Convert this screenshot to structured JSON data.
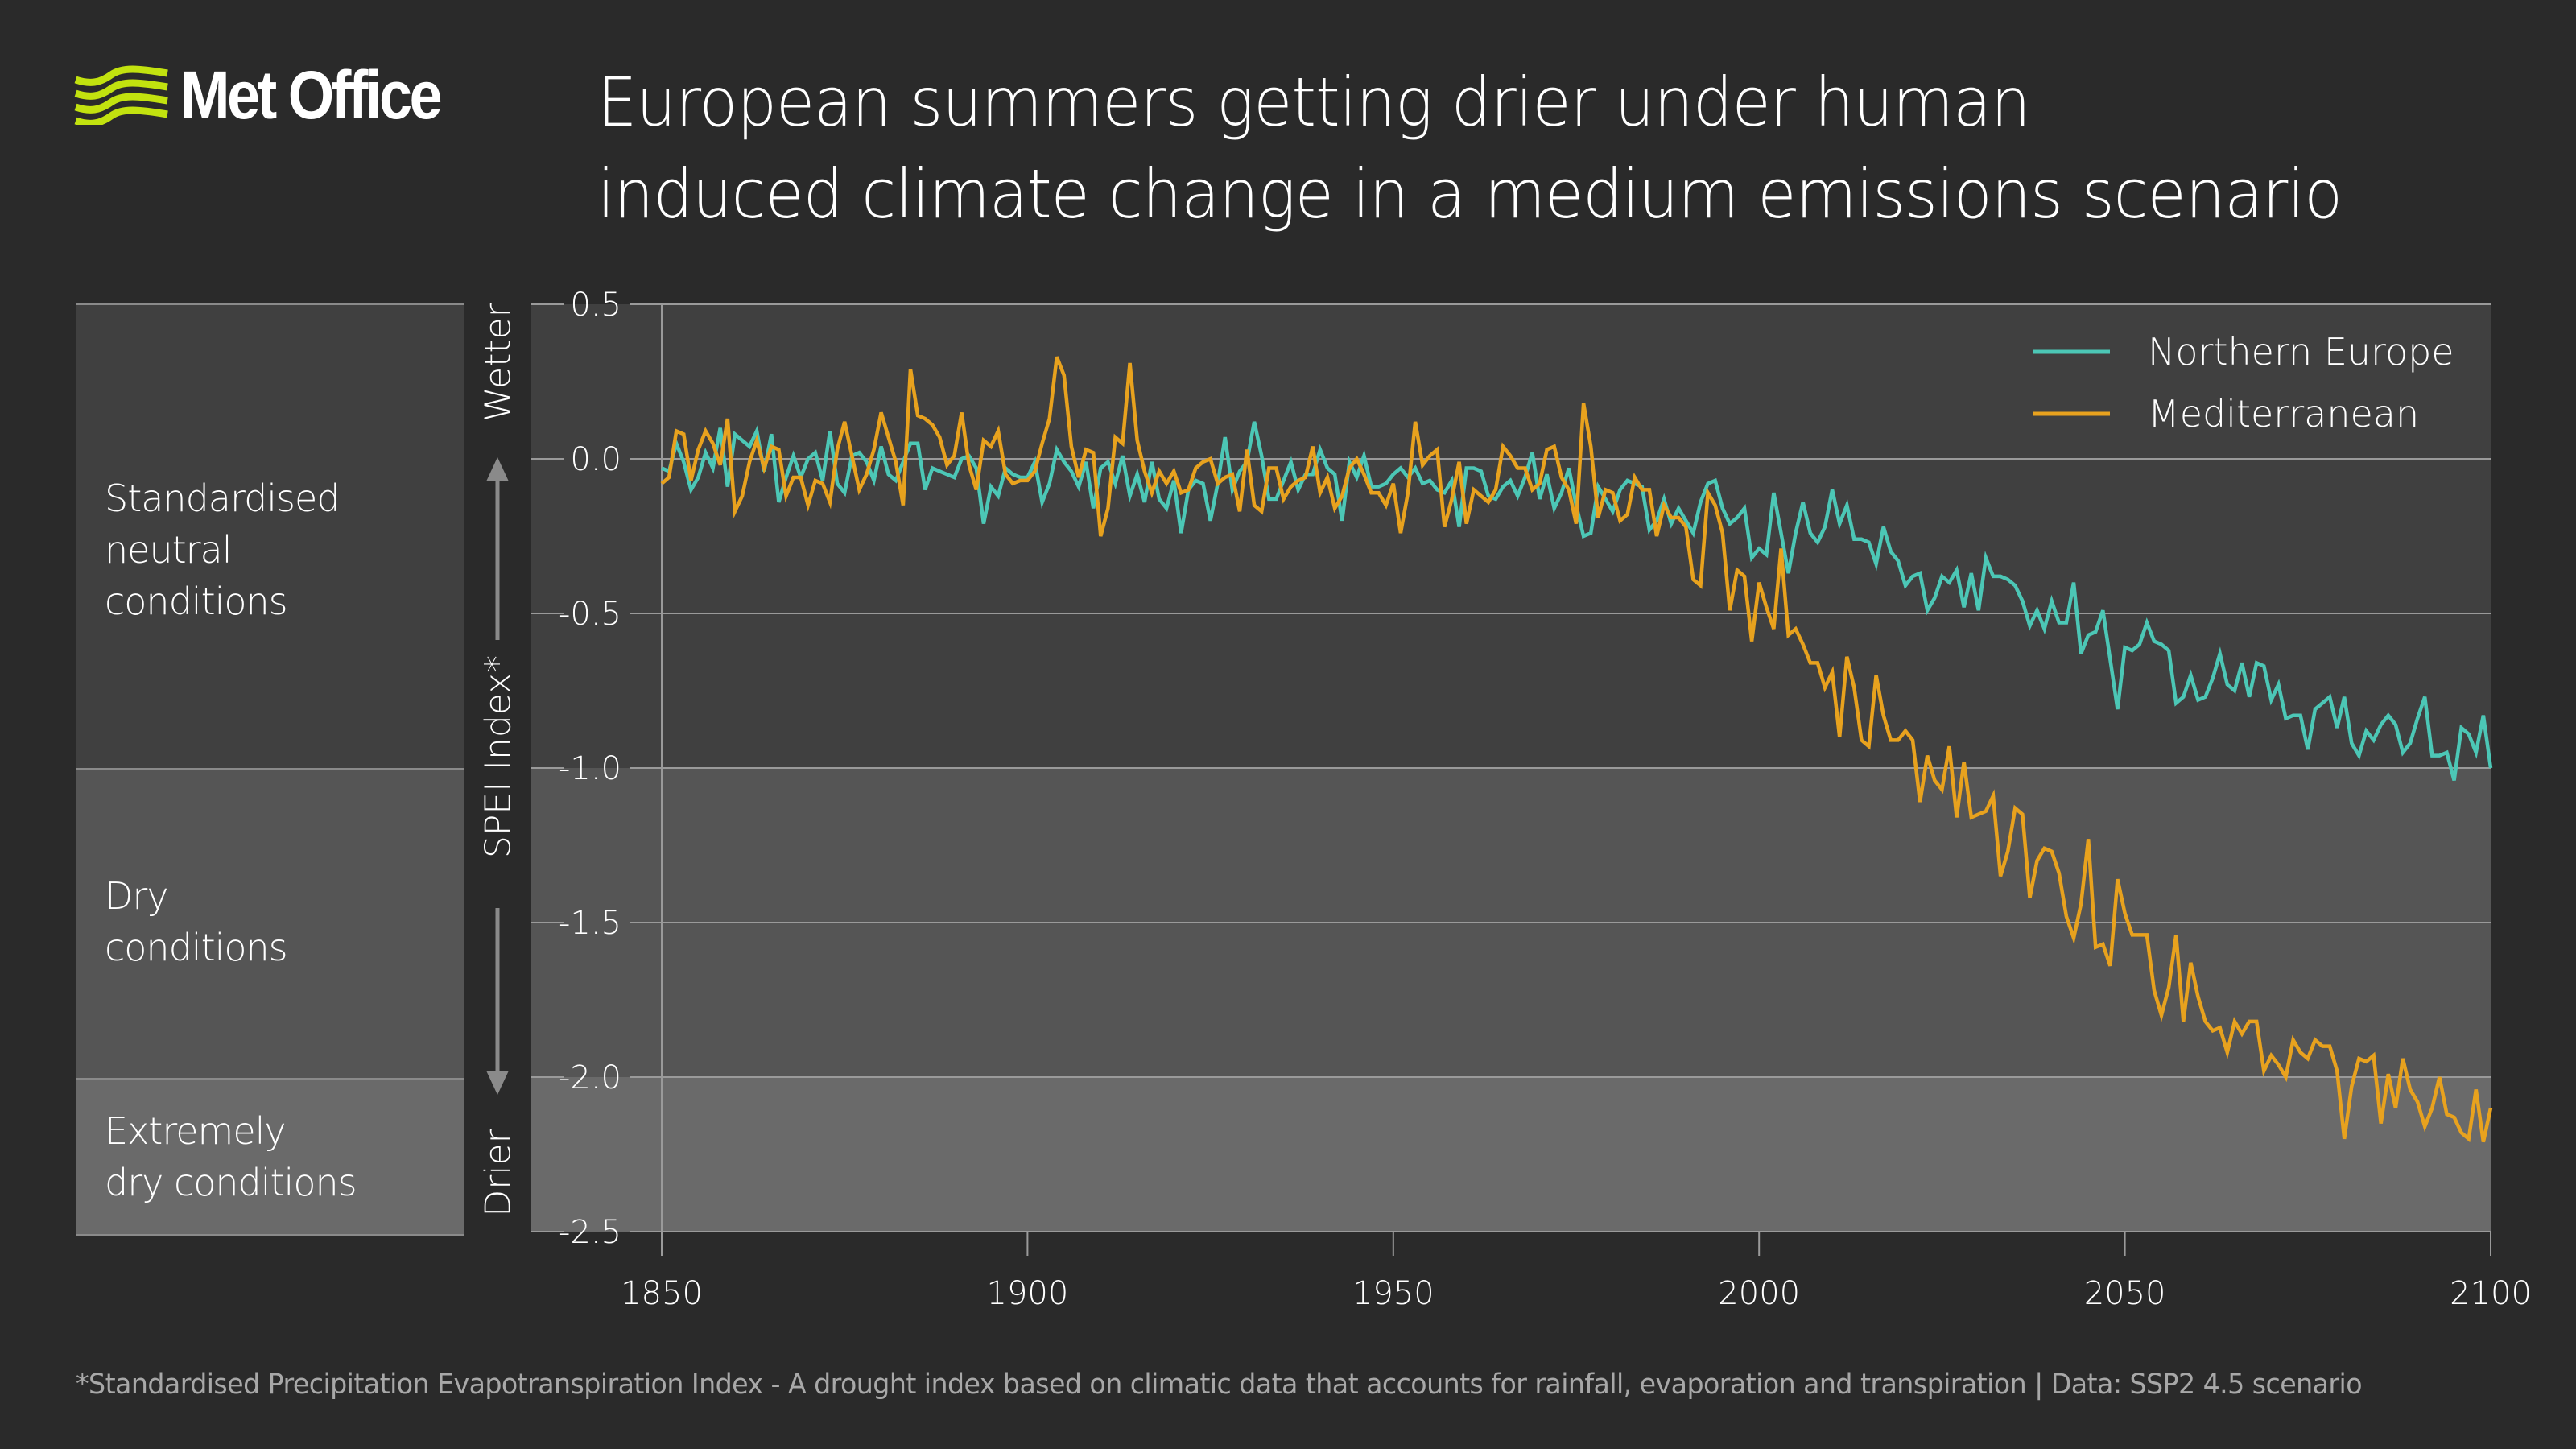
{
  "header": {
    "logo_text": "Met Office",
    "logo_color": "#c2e20f",
    "title_lines": [
      "European summers getting drier under human",
      "induced climate change in a medium emissions scenario"
    ]
  },
  "bands": [
    {
      "label_lines": [
        "Standardised",
        "neutral",
        "conditions"
      ],
      "range": [
        -1.0,
        0.5
      ],
      "color": "#404040"
    },
    {
      "label_lines": [
        "Dry",
        "conditions"
      ],
      "range": [
        -2.0,
        -1.0
      ],
      "color": "#555555"
    },
    {
      "label_lines": [
        "Extremely",
        "dry conditions"
      ],
      "range": [
        -2.5,
        -2.0
      ],
      "color": "#6a6a6a"
    }
  ],
  "axis": {
    "wetter_label": "Wetter",
    "drier_label": "Drier",
    "index_label": "SPEI Index*"
  },
  "footer": "*Standardised Precipitation Evapotranspiration Index - A drought index based on climatic data that accounts for rainfall, evaporation and transpiration  |  Data: SSP2 4.5 scenario",
  "chart_data": {
    "type": "line",
    "title": "European summers getting drier under human induced climate change in a medium emissions scenario",
    "xlabel": "",
    "ylabel": "SPEI Index*",
    "xlim": [
      1850,
      2100
    ],
    "ylim": [
      -2.5,
      0.5
    ],
    "x_ticks": [
      1850,
      1900,
      1950,
      2000,
      2050,
      2100
    ],
    "y_ticks": [
      0.5,
      0.0,
      -0.5,
      -1.0,
      -1.5,
      -2.0,
      -2.5
    ],
    "y_tick_labels": [
      "0.5",
      "0.0",
      "-0.5",
      "-1.0",
      "-1.5",
      "-2.0",
      "-2.5"
    ],
    "grid": "horizontal",
    "legend_position": "top-right",
    "x_start": 1850,
    "x_step": 1,
    "series": [
      {
        "name": "Northern Europe",
        "color": "#4cc7b6",
        "values": [
          -0.03,
          -0.04,
          0.05,
          -0.01,
          -0.1,
          -0.06,
          0.02,
          -0.03,
          0.1,
          -0.09,
          0.08,
          0.06,
          0.04,
          0.09,
          -0.04,
          0.08,
          -0.14,
          -0.06,
          0.01,
          -0.06,
          0.0,
          0.02,
          -0.07,
          0.09,
          -0.08,
          -0.11,
          0.01,
          0.02,
          -0.01,
          -0.07,
          0.04,
          -0.05,
          -0.07,
          -0.01,
          0.05,
          0.05,
          -0.1,
          -0.03,
          -0.04,
          -0.05,
          -0.06,
          0.0,
          0.01,
          -0.03,
          -0.21,
          -0.09,
          -0.12,
          -0.03,
          -0.05,
          -0.06,
          -0.06,
          -0.01,
          -0.14,
          -0.08,
          0.03,
          -0.01,
          -0.04,
          -0.09,
          -0.01,
          -0.16,
          -0.03,
          -0.01,
          -0.08,
          0.01,
          -0.12,
          -0.05,
          -0.14,
          -0.01,
          -0.13,
          -0.16,
          -0.07,
          -0.24,
          -0.1,
          -0.07,
          -0.08,
          -0.2,
          -0.08,
          0.07,
          -0.1,
          -0.04,
          -0.01,
          0.12,
          0.01,
          -0.13,
          -0.13,
          -0.07,
          -0.01,
          -0.1,
          -0.05,
          -0.05,
          0.03,
          -0.03,
          -0.05,
          -0.2,
          -0.01,
          -0.06,
          0.01,
          -0.09,
          -0.09,
          -0.08,
          -0.05,
          -0.03,
          -0.06,
          -0.03,
          -0.08,
          -0.07,
          -0.1,
          -0.11,
          -0.07,
          -0.22,
          -0.03,
          -0.03,
          -0.04,
          -0.12,
          -0.13,
          -0.09,
          -0.07,
          -0.12,
          -0.06,
          0.02,
          -0.13,
          -0.05,
          -0.16,
          -0.11,
          -0.03,
          -0.15,
          -0.25,
          -0.24,
          -0.09,
          -0.13,
          -0.17,
          -0.1,
          -0.07,
          -0.08,
          -0.09,
          -0.23,
          -0.2,
          -0.13,
          -0.21,
          -0.16,
          -0.2,
          -0.24,
          -0.14,
          -0.08,
          -0.07,
          -0.16,
          -0.21,
          -0.19,
          -0.16,
          -0.32,
          -0.29,
          -0.31,
          -0.11,
          -0.24,
          -0.37,
          -0.24,
          -0.14,
          -0.24,
          -0.27,
          -0.22,
          -0.1,
          -0.21,
          -0.15,
          -0.26,
          -0.26,
          -0.27,
          -0.34,
          -0.22,
          -0.3,
          -0.33,
          -0.41,
          -0.38,
          -0.37,
          -0.49,
          -0.45,
          -0.38,
          -0.4,
          -0.36,
          -0.48,
          -0.37,
          -0.49,
          -0.32,
          -0.38,
          -0.38,
          -0.39,
          -0.41,
          -0.46,
          -0.54,
          -0.49,
          -0.55,
          -0.46,
          -0.53,
          -0.53,
          -0.4,
          -0.63,
          -0.57,
          -0.56,
          -0.49,
          -0.65,
          -0.81,
          -0.61,
          -0.62,
          -0.6,
          -0.53,
          -0.59,
          -0.6,
          -0.62,
          -0.79,
          -0.77,
          -0.7,
          -0.78,
          -0.77,
          -0.71,
          -0.63,
          -0.73,
          -0.75,
          -0.66,
          -0.77,
          -0.66,
          -0.67,
          -0.78,
          -0.73,
          -0.84,
          -0.83,
          -0.83,
          -0.94,
          -0.81,
          -0.79,
          -0.77,
          -0.87,
          -0.77,
          -0.92,
          -0.96,
          -0.88,
          -0.91,
          -0.86,
          -0.83,
          -0.86,
          -0.95,
          -0.92,
          -0.84,
          -0.77,
          -0.96,
          -0.96,
          -0.95,
          -1.04,
          -0.87,
          -0.89,
          -0.95,
          -0.83,
          -1.0
        ]
      },
      {
        "name": "Mediterranean",
        "color": "#e8a21e",
        "values": [
          -0.08,
          -0.06,
          0.09,
          0.08,
          -0.07,
          0.03,
          0.09,
          0.05,
          -0.02,
          0.13,
          -0.17,
          -0.12,
          -0.01,
          0.06,
          -0.03,
          0.04,
          0.03,
          -0.12,
          -0.06,
          -0.06,
          -0.15,
          -0.07,
          -0.08,
          -0.14,
          0.03,
          0.12,
          0.01,
          -0.1,
          -0.05,
          0.03,
          0.15,
          0.07,
          -0.01,
          -0.15,
          0.29,
          0.14,
          0.13,
          0.11,
          0.07,
          -0.02,
          0.01,
          0.15,
          -0.02,
          -0.1,
          0.06,
          0.04,
          0.09,
          -0.05,
          -0.08,
          -0.07,
          -0.07,
          -0.04,
          0.05,
          0.13,
          0.33,
          0.27,
          0.04,
          -0.06,
          0.03,
          0.02,
          -0.25,
          -0.16,
          0.07,
          0.05,
          0.31,
          0.06,
          -0.04,
          -0.11,
          -0.04,
          -0.08,
          -0.04,
          -0.11,
          -0.1,
          -0.03,
          -0.01,
          0.0,
          -0.08,
          -0.06,
          -0.05,
          -0.17,
          0.03,
          -0.15,
          -0.17,
          -0.03,
          -0.03,
          -0.13,
          -0.09,
          -0.07,
          -0.06,
          0.04,
          -0.11,
          -0.06,
          -0.16,
          -0.12,
          -0.03,
          0.0,
          -0.05,
          -0.11,
          -0.11,
          -0.15,
          -0.08,
          -0.24,
          -0.11,
          0.12,
          -0.02,
          0.01,
          0.03,
          -0.22,
          -0.13,
          -0.01,
          -0.21,
          -0.1,
          -0.12,
          -0.14,
          -0.1,
          0.04,
          0.01,
          -0.03,
          -0.03,
          -0.1,
          -0.08,
          0.03,
          0.04,
          -0.06,
          -0.1,
          -0.21,
          0.18,
          0.04,
          -0.19,
          -0.1,
          -0.11,
          -0.2,
          -0.18,
          -0.06,
          -0.1,
          -0.1,
          -0.25,
          -0.15,
          -0.19,
          -0.19,
          -0.22,
          -0.39,
          -0.41,
          -0.11,
          -0.15,
          -0.24,
          -0.49,
          -0.36,
          -0.38,
          -0.59,
          -0.4,
          -0.48,
          -0.55,
          -0.29,
          -0.57,
          -0.55,
          -0.6,
          -0.66,
          -0.66,
          -0.74,
          -0.69,
          -0.9,
          -0.64,
          -0.74,
          -0.91,
          -0.93,
          -0.7,
          -0.83,
          -0.91,
          -0.91,
          -0.88,
          -0.91,
          -1.11,
          -0.96,
          -1.04,
          -1.07,
          -0.93,
          -1.16,
          -0.98,
          -1.16,
          -1.15,
          -1.14,
          -1.09,
          -1.35,
          -1.27,
          -1.13,
          -1.15,
          -1.42,
          -1.3,
          -1.26,
          -1.27,
          -1.34,
          -1.48,
          -1.55,
          -1.44,
          -1.23,
          -1.58,
          -1.57,
          -1.64,
          -1.36,
          -1.47,
          -1.54,
          -1.54,
          -1.54,
          -1.72,
          -1.8,
          -1.71,
          -1.54,
          -1.82,
          -1.63,
          -1.74,
          -1.82,
          -1.85,
          -1.84,
          -1.92,
          -1.82,
          -1.86,
          -1.82,
          -1.82,
          -1.98,
          -1.93,
          -1.96,
          -2.0,
          -1.88,
          -1.92,
          -1.94,
          -1.88,
          -1.9,
          -1.9,
          -1.98,
          -2.2,
          -2.03,
          -1.94,
          -1.95,
          -1.93,
          -2.15,
          -1.99,
          -2.1,
          -1.94,
          -2.04,
          -2.08,
          -2.16,
          -2.1,
          -2.0,
          -2.12,
          -2.13,
          -2.18,
          -2.2,
          -2.04,
          -2.21,
          -2.1
        ]
      }
    ]
  }
}
